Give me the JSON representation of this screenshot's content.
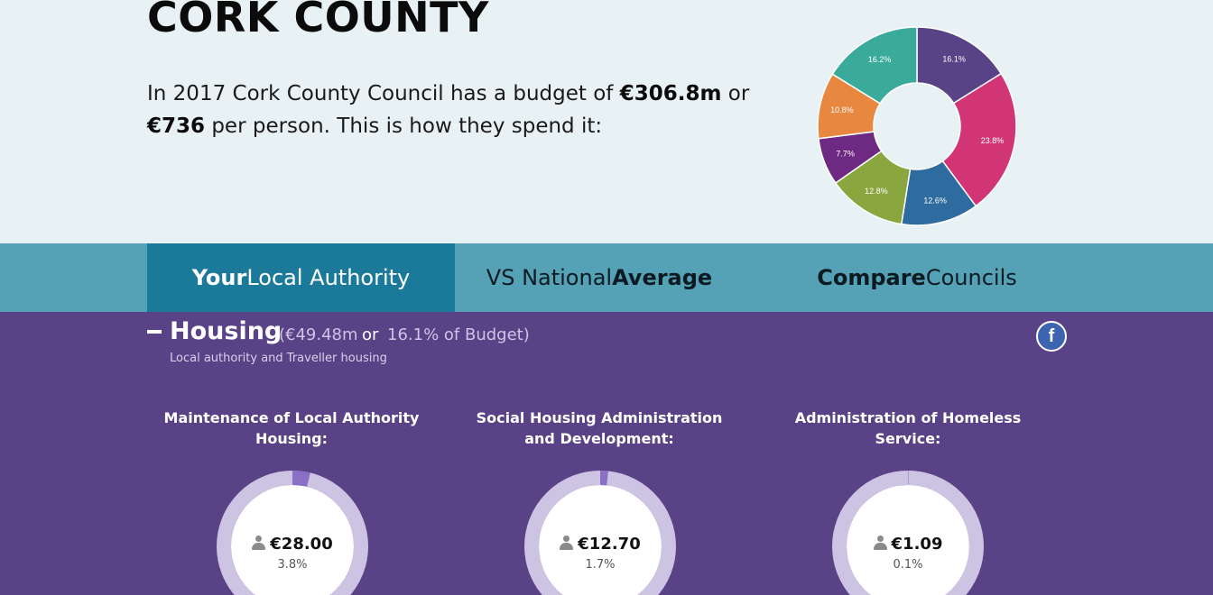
{
  "header": {
    "title": "CORK COUNTY",
    "intro_pre": "In 2017 Cork County Council has a budget of ",
    "intro_budget": "€306.8m",
    "intro_or": " or",
    "intro_per_person": "€736",
    "intro_post": " per person. This is how they spend it:"
  },
  "donut": {
    "slices": [
      {
        "label": "16.1%",
        "value": 16.1,
        "color": "#594285"
      },
      {
        "label": "23.8%",
        "value": 23.8,
        "color": "#d13575"
      },
      {
        "label": "12.6%",
        "value": 12.6,
        "color": "#2e6b9e"
      },
      {
        "label": "12.8%",
        "value": 12.8,
        "color": "#8aa63f"
      },
      {
        "label": "7.7%",
        "value": 7.7,
        "color": "#6e2a82"
      },
      {
        "label": "10.8%",
        "value": 10.8,
        "color": "#e8873f"
      },
      {
        "label": "16.2%",
        "value": 16.2,
        "color": "#3aab9b"
      }
    ]
  },
  "tabs": [
    {
      "bold": "Your",
      "rest": " Local Authority",
      "active": true
    },
    {
      "pre": "VS National ",
      "bold": "Average",
      "active": false
    },
    {
      "bold": "Compare",
      "rest": " Councils",
      "active": false
    }
  ],
  "category": {
    "collapse_icon": "minus-icon",
    "name": "Housing",
    "amount": "(€49.48m",
    "or": "or",
    "percent": "16.1% of Budget)",
    "description": "Local authority and Traveller housing",
    "share_icon": "facebook-icon",
    "share_label": "f",
    "accent_color": "#594285"
  },
  "subcategories": [
    {
      "title": "Maintenance of Local Authority Housing:",
      "value": "€28.00",
      "percent_label": "3.8%",
      "fraction": 0.038
    },
    {
      "title": "Social Housing Administration and Development:",
      "value": "€12.70",
      "percent_label": "1.7%",
      "fraction": 0.017
    },
    {
      "title": "Administration of Homeless Service:",
      "value": "€1.09",
      "percent_label": "0.1%",
      "fraction": 0.001
    }
  ]
}
